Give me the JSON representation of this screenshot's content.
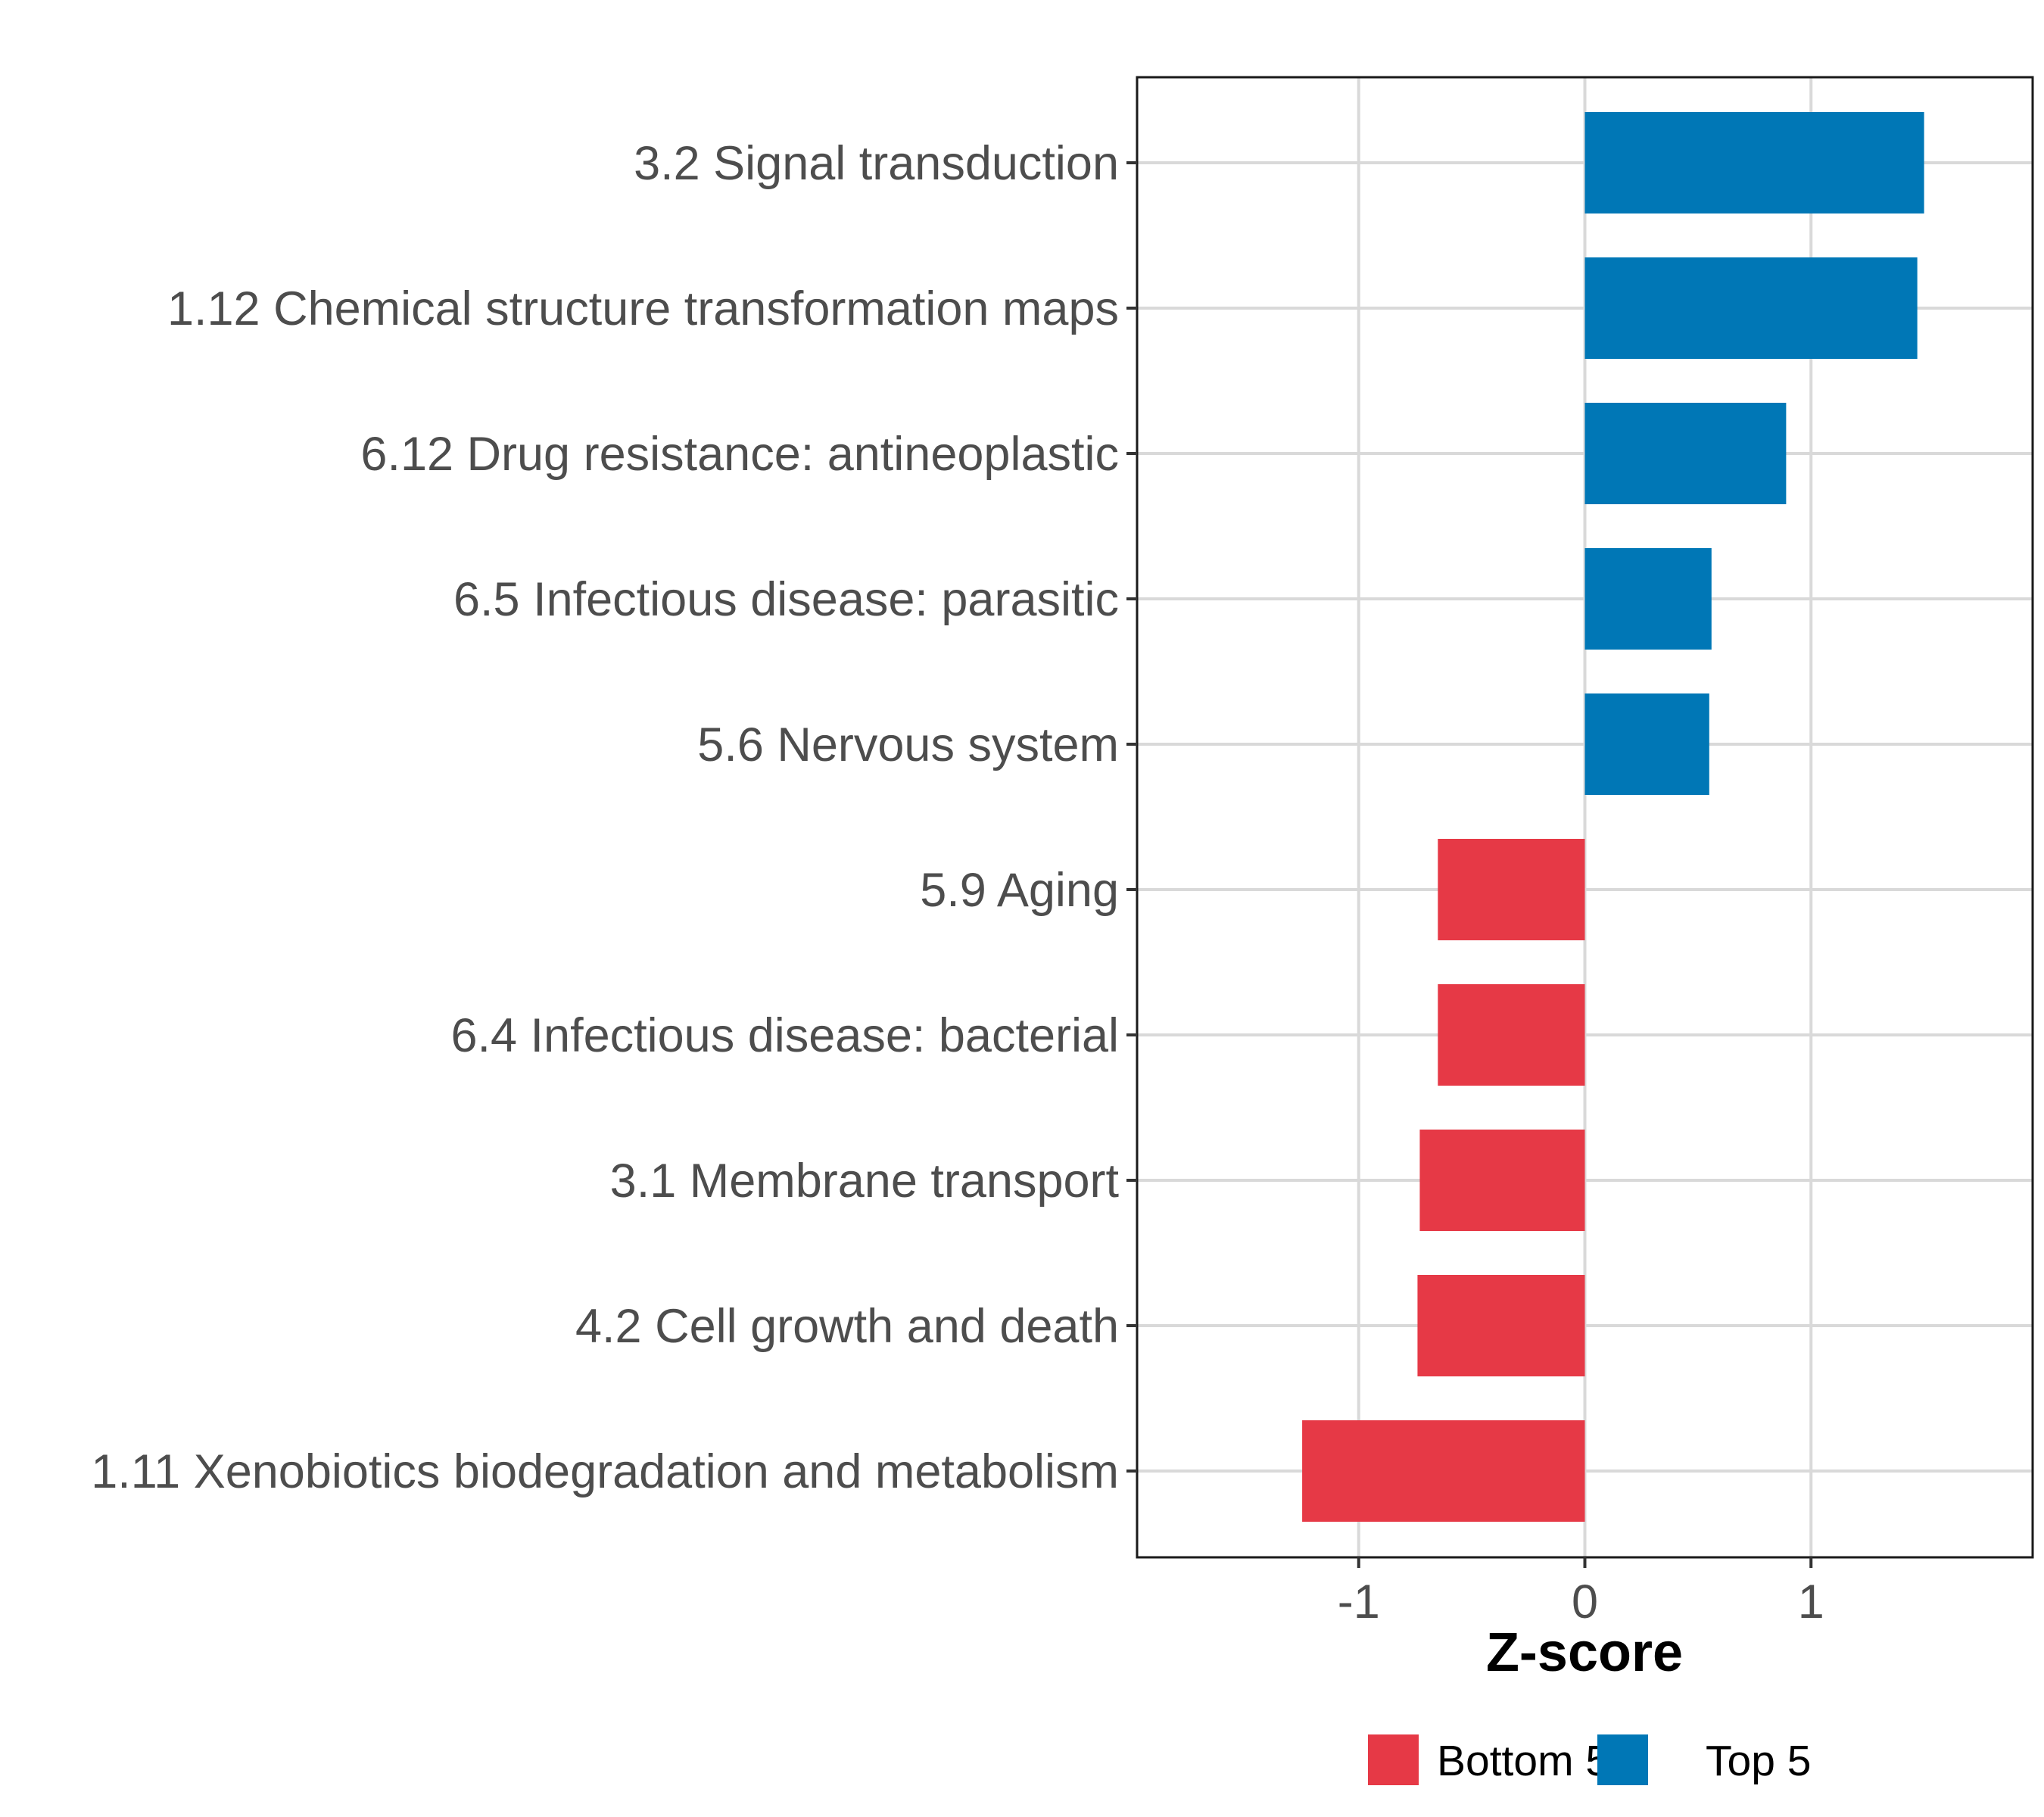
{
  "chart_data": {
    "type": "bar",
    "orientation": "horizontal",
    "title": "",
    "xlabel": "Z-score",
    "ylabel": "",
    "xlim": [
      -1.98,
      1.98
    ],
    "xticks": [
      -1,
      0,
      1
    ],
    "xtick_labels": [
      "-1",
      "0",
      "1"
    ],
    "grid": true,
    "legend_position": "bottom",
    "categories": [
      "3.2 Signal transduction",
      "1.12 Chemical structure transformation maps",
      "6.12 Drug resistance: antineoplastic",
      "6.5 Infectious disease: parasitic",
      "5.6 Nervous system",
      "5.9 Aging",
      "6.4 Infectious disease: bacterial",
      "3.1 Membrane transport",
      "4.2 Cell growth and death",
      "1.11 Xenobiotics biodegradation and metabolism"
    ],
    "values": [
      1.5,
      1.47,
      0.89,
      0.56,
      0.55,
      -0.65,
      -0.65,
      -0.73,
      -0.74,
      -1.25
    ],
    "groups": [
      "Top 5",
      "Top 5",
      "Top 5",
      "Top 5",
      "Top 5",
      "Bottom 5",
      "Bottom 5",
      "Bottom 5",
      "Bottom 5",
      "Bottom 5"
    ],
    "legend": [
      {
        "name": "Bottom 5",
        "color": "#e63946"
      },
      {
        "name": "Top 5",
        "color": "#0077b6"
      }
    ]
  }
}
